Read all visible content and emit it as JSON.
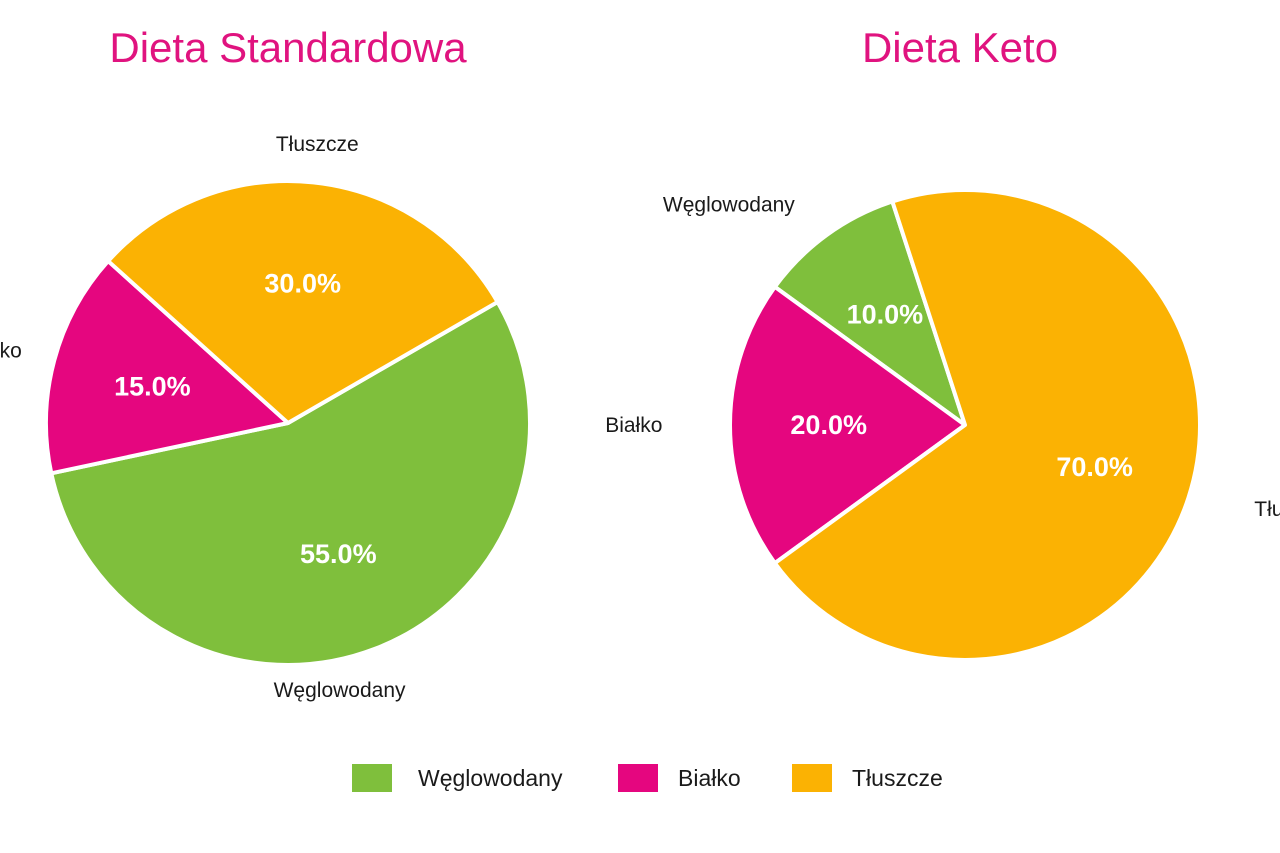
{
  "chart_data": [
    {
      "type": "pie",
      "title": "Dieta Standardowa",
      "slices": [
        {
          "label": "Węglowodany",
          "value": 55.0,
          "value_label": "55.0%"
        },
        {
          "label": "Białko",
          "value": 15.0,
          "value_label": "15.0%"
        },
        {
          "label": "Tłuszcze",
          "value": 30.0,
          "value_label": "30.0%"
        }
      ],
      "start_angle_deg": -30,
      "direction": "clockwise"
    },
    {
      "type": "pie",
      "title": "Dieta Keto",
      "slices": [
        {
          "label": "Węglowodany",
          "value": 10.0,
          "value_label": "10.0%"
        },
        {
          "label": "Białko",
          "value": 20.0,
          "value_label": "20.0%"
        },
        {
          "label": "Tłuszcze",
          "value": 70.0,
          "value_label": "70.0%"
        }
      ],
      "start_angle_deg": -108,
      "direction": "counterclockwise"
    }
  ],
  "legend": {
    "placement": "bottom-center",
    "items": [
      {
        "label": "Węglowodany",
        "color": "#7fbf3c"
      },
      {
        "label": "Białko",
        "color": "#e5067f"
      },
      {
        "label": "Tłuszcze",
        "color": "#fbb203"
      }
    ]
  },
  "colors": {
    "title": "#e0137f",
    "Węglowodany": "#7fbf3c",
    "Białko": "#e5067f",
    "Tłuszcze": "#fbb203",
    "slice_border": "#ffffff"
  }
}
